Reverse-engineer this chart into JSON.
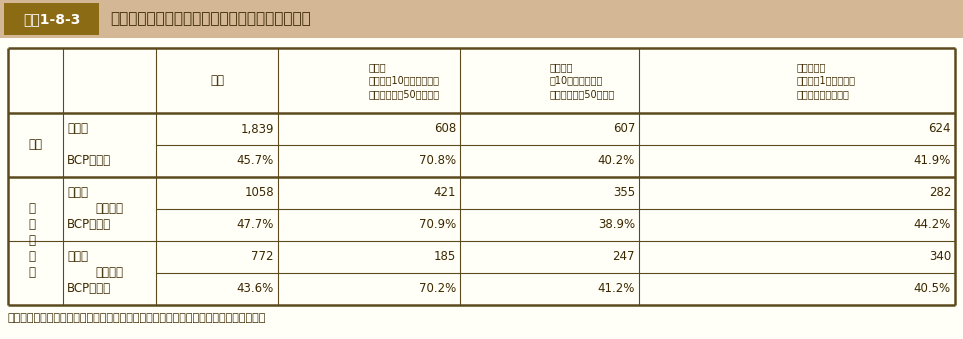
{
  "title_box_label": "図表1-8-3",
  "title_text": "企業調査（令和３年度）のアンケートの回収状況",
  "bg_color": "#FFFFF8",
  "title_bg_color": "#D4B896",
  "title_box_bg": "#8B6914",
  "header_bg": "#FFFFF8",
  "table_border_color": "#5C4A1E",
  "thick_line_color": "#5C4A1E",
  "col_headers": [
    "全体",
    "大企業\n（資本金10億円以上かつ\n常用雇用者数50人超等）",
    "中堅企業\n（10億円未満かつ\n常用雇用者数50人超等",
    "その他企業\n（資本金1億円超かつ\n大・中堅企業以外）"
  ],
  "row_groups": [
    {
      "group_label": "全体",
      "sub_group_label": null,
      "rows": [
        {
          "label": "企業数",
          "values": [
            "1,839",
            "608",
            "607",
            "624"
          ]
        },
        {
          "label": "BCP策定率",
          "values": [
            "45.7%",
            "70.8%",
            "40.2%",
            "41.9%"
          ]
        }
      ]
    },
    {
      "group_label": "被災の有無",
      "sub_groups": [
        {
          "sub_label": "被災あり",
          "rows": [
            {
              "label": "企業数",
              "values": [
                "1058",
                "421",
                "355",
                "282"
              ]
            },
            {
              "label": "BCP策定率",
              "values": [
                "47.7%",
                "70.9%",
                "38.9%",
                "44.2%"
              ]
            }
          ]
        },
        {
          "sub_label": "被災なし",
          "rows": [
            {
              "label": "企業数",
              "values": [
                "772",
                "185",
                "247",
                "340"
              ]
            },
            {
              "label": "BCP策定率",
              "values": [
                "43.6%",
                "70.2%",
                "41.2%",
                "40.5%"
              ]
            }
          ]
        }
      ]
    }
  ],
  "footnote": "出典：「令和３年度企業の事業継続及び防災の取組に関する実態調査」より内閣府作成"
}
